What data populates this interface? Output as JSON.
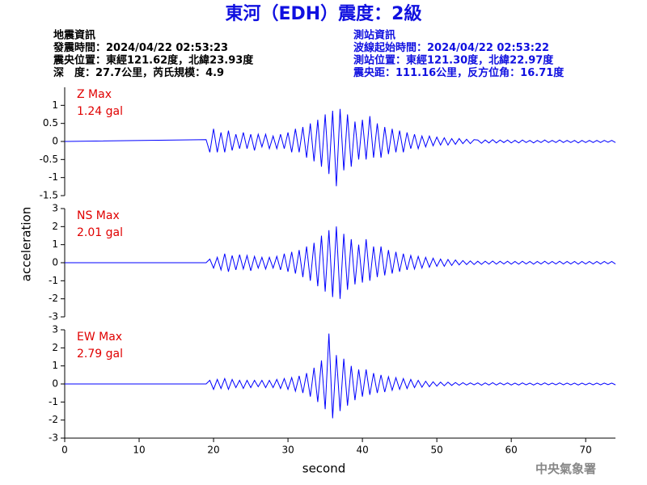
{
  "title": "東河（EDH）震度：2級",
  "event_info": [
    "地震資訊",
    "發震時間：2024/04/22 02:53:23",
    "震央位置：東經121.62度，北緯23.93度",
    "深　度：27.7公里，芮氏規模：4.9"
  ],
  "station_info": [
    "測站資訊",
    "波線起始時間：2024/04/22 02:53:22",
    "測站位置：東經121.30度，北緯22.97度",
    "震央距：111.16公里，反方位角：16.71度"
  ],
  "ylabel": "acceleration",
  "watermark": "中央氣象署",
  "chart_data": [
    {
      "type": "line",
      "annotation": [
        "Z Max",
        "1.24 gal"
      ],
      "annotation_color": "#e00000",
      "color": "#0000ff",
      "xlim": [
        0,
        74
      ],
      "ylim": [
        -1.5,
        1.5
      ],
      "yticks": [
        -1.5,
        -1,
        -0.5,
        0,
        0.5,
        1
      ],
      "x": [
        0,
        19,
        19.5,
        20,
        20.5,
        21,
        21.5,
        22,
        22.5,
        23,
        23.5,
        24,
        24.5,
        25,
        25.5,
        26,
        26.5,
        27,
        27.5,
        28,
        28.5,
        29,
        29.5,
        30,
        30.5,
        31,
        31.5,
        32,
        32.5,
        33,
        33.5,
        34,
        34.5,
        35,
        35.5,
        36,
        36.5,
        37,
        37.5,
        38,
        38.5,
        39,
        39.5,
        40,
        40.5,
        41,
        41.5,
        42,
        42.5,
        43,
        43.5,
        44,
        44.5,
        45,
        45.5,
        46,
        46.5,
        47,
        47.5,
        48,
        48.5,
        49,
        49.5,
        50,
        50.5,
        51,
        51.5,
        52,
        52.5,
        53,
        53.5,
        54,
        54.5,
        55,
        55.5,
        56,
        56.5,
        57,
        57.5,
        58,
        58.5,
        59,
        59.5,
        60,
        60.5,
        61,
        61.5,
        62,
        62.5,
        63,
        63.5,
        64,
        64.5,
        65,
        65.5,
        66,
        66.5,
        67,
        67.5,
        68,
        68.5,
        69,
        69.5,
        70,
        70.5,
        71,
        71.5,
        72,
        72.5,
        73,
        73.5,
        74
      ],
      "values": [
        0,
        0.05,
        -0.3,
        0.35,
        -0.3,
        0.25,
        -0.3,
        0.3,
        -0.25,
        0.2,
        -0.2,
        0.25,
        -0.2,
        0.2,
        -0.25,
        0.2,
        -0.15,
        0.2,
        -0.2,
        0.15,
        -0.2,
        0.2,
        -0.2,
        0.25,
        -0.3,
        0.35,
        -0.3,
        0.4,
        -0.45,
        0.5,
        -0.55,
        0.6,
        -0.7,
        0.75,
        -0.9,
        0.85,
        -1.24,
        0.9,
        -0.8,
        0.75,
        -0.7,
        0.55,
        -0.5,
        0.6,
        -0.5,
        0.7,
        -0.45,
        0.5,
        -0.45,
        0.4,
        -0.35,
        0.35,
        -0.3,
        0.3,
        -0.3,
        0.25,
        -0.2,
        0.2,
        -0.2,
        0.15,
        -0.15,
        0.15,
        -0.12,
        0.12,
        -0.1,
        0.1,
        -0.1,
        0.08,
        -0.08,
        0.08,
        -0.06,
        0.06,
        -0.06,
        0.05,
        0.04,
        -0.05,
        0.04,
        -0.04,
        0.05,
        -0.04,
        0.04,
        -0.03,
        0.04,
        -0.04,
        0.03,
        -0.04,
        0.04,
        -0.03,
        0.03,
        -0.04,
        0.03,
        -0.03,
        0.04,
        -0.03,
        0.03,
        -0.03,
        0.04,
        -0.03,
        0.03,
        -0.03,
        0.03,
        -0.04,
        0.03,
        -0.03,
        0.03,
        -0.03,
        0.03,
        -0.03,
        0.03,
        -0.02,
        0.03,
        -0.03
      ]
    },
    {
      "type": "line",
      "annotation": [
        "NS Max",
        "2.01 gal"
      ],
      "annotation_color": "#e00000",
      "color": "#0000ff",
      "xlim": [
        0,
        74
      ],
      "ylim": [
        -3,
        3
      ],
      "yticks": [
        -3,
        -2,
        -1,
        0,
        1,
        2,
        3
      ],
      "x": [
        0,
        19,
        19.5,
        20,
        20.5,
        21,
        21.5,
        22,
        22.5,
        23,
        23.5,
        24,
        24.5,
        25,
        25.5,
        26,
        26.5,
        27,
        27.5,
        28,
        28.5,
        29,
        29.5,
        30,
        30.5,
        31,
        31.5,
        32,
        32.5,
        33,
        33.5,
        34,
        34.5,
        35,
        35.5,
        36,
        36.5,
        37,
        37.5,
        38,
        38.5,
        39,
        39.5,
        40,
        40.5,
        41,
        41.5,
        42,
        42.5,
        43,
        43.5,
        44,
        44.5,
        45,
        45.5,
        46,
        46.5,
        47,
        47.5,
        48,
        48.5,
        49,
        49.5,
        50,
        50.5,
        51,
        51.5,
        52,
        52.5,
        53,
        53.5,
        54,
        54.5,
        55,
        55.5,
        56,
        56.5,
        57,
        57.5,
        58,
        58.5,
        59,
        59.5,
        60,
        60.5,
        61,
        61.5,
        62,
        62.5,
        63,
        63.5,
        64,
        64.5,
        65,
        65.5,
        66,
        66.5,
        67,
        67.5,
        68,
        68.5,
        69,
        69.5,
        70,
        70.5,
        71,
        71.5,
        72,
        72.5,
        73,
        73.5,
        74
      ],
      "values": [
        0,
        0,
        0.2,
        -0.3,
        0.3,
        -0.4,
        0.5,
        -0.5,
        0.4,
        -0.4,
        0.45,
        -0.35,
        0.4,
        -0.45,
        0.35,
        -0.3,
        0.3,
        -0.35,
        0.3,
        -0.3,
        0.35,
        -0.4,
        0.5,
        -0.5,
        0.6,
        -0.6,
        0.7,
        -0.8,
        0.9,
        -1.0,
        1.1,
        -1.3,
        1.5,
        -1.6,
        1.8,
        -1.9,
        2.01,
        -2.0,
        1.6,
        -1.5,
        1.3,
        -1.2,
        1.0,
        -1.1,
        1.3,
        -1.0,
        0.9,
        -0.8,
        0.9,
        -0.7,
        0.7,
        -0.6,
        0.6,
        -0.5,
        0.5,
        -0.4,
        0.4,
        -0.35,
        0.35,
        -0.3,
        0.3,
        -0.25,
        0.25,
        -0.2,
        0.2,
        -0.2,
        0.18,
        -0.15,
        0.15,
        -0.12,
        0.12,
        -0.1,
        0.1,
        -0.1,
        0.08,
        -0.09,
        0.08,
        -0.08,
        0.09,
        -0.08,
        0.08,
        -0.07,
        0.08,
        -0.08,
        0.07,
        -0.08,
        0.08,
        -0.07,
        0.07,
        -0.08,
        0.07,
        -0.07,
        0.08,
        -0.07,
        0.07,
        -0.07,
        0.08,
        -0.07,
        0.07,
        -0.07,
        0.07,
        -0.08,
        0.07,
        -0.07,
        0.07,
        -0.07,
        0.07,
        -0.07,
        0.07,
        -0.06,
        0.07,
        -0.07
      ]
    },
    {
      "type": "line",
      "annotation": [
        "EW Max",
        "2.79 gal"
      ],
      "annotation_color": "#e00000",
      "color": "#0000ff",
      "xlim": [
        0,
        74
      ],
      "ylim": [
        -3,
        3
      ],
      "yticks": [
        -3,
        -2,
        -1,
        0,
        1,
        2,
        3
      ],
      "xticks": [
        0,
        10,
        20,
        30,
        40,
        50,
        60,
        70
      ],
      "xlabel": "second",
      "x": [
        0,
        19,
        19.5,
        20,
        20.5,
        21,
        21.5,
        22,
        22.5,
        23,
        23.5,
        24,
        24.5,
        25,
        25.5,
        26,
        26.5,
        27,
        27.5,
        28,
        28.5,
        29,
        29.5,
        30,
        30.5,
        31,
        31.5,
        32,
        32.5,
        33,
        33.5,
        34,
        34.5,
        35,
        35.5,
        36,
        36.5,
        37,
        37.5,
        38,
        38.5,
        39,
        39.5,
        40,
        40.5,
        41,
        41.5,
        42,
        42.5,
        43,
        43.5,
        44,
        44.5,
        45,
        45.5,
        46,
        46.5,
        47,
        47.5,
        48,
        48.5,
        49,
        49.5,
        50,
        50.5,
        51,
        51.5,
        52,
        52.5,
        53,
        53.5,
        54,
        54.5,
        55,
        55.5,
        56,
        56.5,
        57,
        57.5,
        58,
        58.5,
        59,
        59.5,
        60,
        60.5,
        61,
        61.5,
        62,
        62.5,
        63,
        63.5,
        64,
        64.5,
        65,
        65.5,
        66,
        66.5,
        67,
        67.5,
        68,
        68.5,
        69,
        69.5,
        70,
        70.5,
        71,
        71.5,
        72,
        72.5,
        73,
        73.5,
        74
      ],
      "values": [
        0,
        0,
        0.2,
        -0.3,
        0.25,
        -0.25,
        0.3,
        -0.3,
        0.25,
        -0.2,
        0.2,
        -0.25,
        0.2,
        -0.2,
        0.2,
        -0.15,
        0.2,
        -0.2,
        0.2,
        -0.2,
        0.25,
        -0.25,
        0.3,
        -0.3,
        0.35,
        -0.4,
        0.45,
        -0.5,
        0.6,
        -0.7,
        0.9,
        -1.0,
        1.3,
        -1.4,
        2.79,
        -1.9,
        1.6,
        -1.5,
        1.4,
        -1.2,
        1.0,
        -0.9,
        0.8,
        -0.7,
        0.8,
        -0.6,
        0.6,
        -0.5,
        0.5,
        -0.45,
        0.4,
        -0.35,
        0.35,
        -0.3,
        0.3,
        -0.25,
        0.25,
        -0.2,
        0.2,
        -0.18,
        0.15,
        -0.15,
        0.12,
        -0.12,
        0.1,
        -0.1,
        0.1,
        -0.08,
        0.08,
        -0.07,
        0.07,
        -0.06,
        0.06,
        -0.05,
        0.06,
        -0.07,
        0.06,
        -0.06,
        0.07,
        -0.06,
        0.06,
        -0.05,
        0.06,
        -0.06,
        0.05,
        -0.06,
        0.06,
        -0.05,
        0.05,
        -0.06,
        0.05,
        -0.05,
        0.06,
        -0.05,
        0.05,
        -0.05,
        0.06,
        -0.05,
        0.05,
        -0.05,
        0.05,
        -0.06,
        0.05,
        -0.05,
        0.05,
        -0.05,
        0.05,
        -0.05,
        0.05,
        -0.04,
        0.05,
        -0.05
      ]
    }
  ]
}
